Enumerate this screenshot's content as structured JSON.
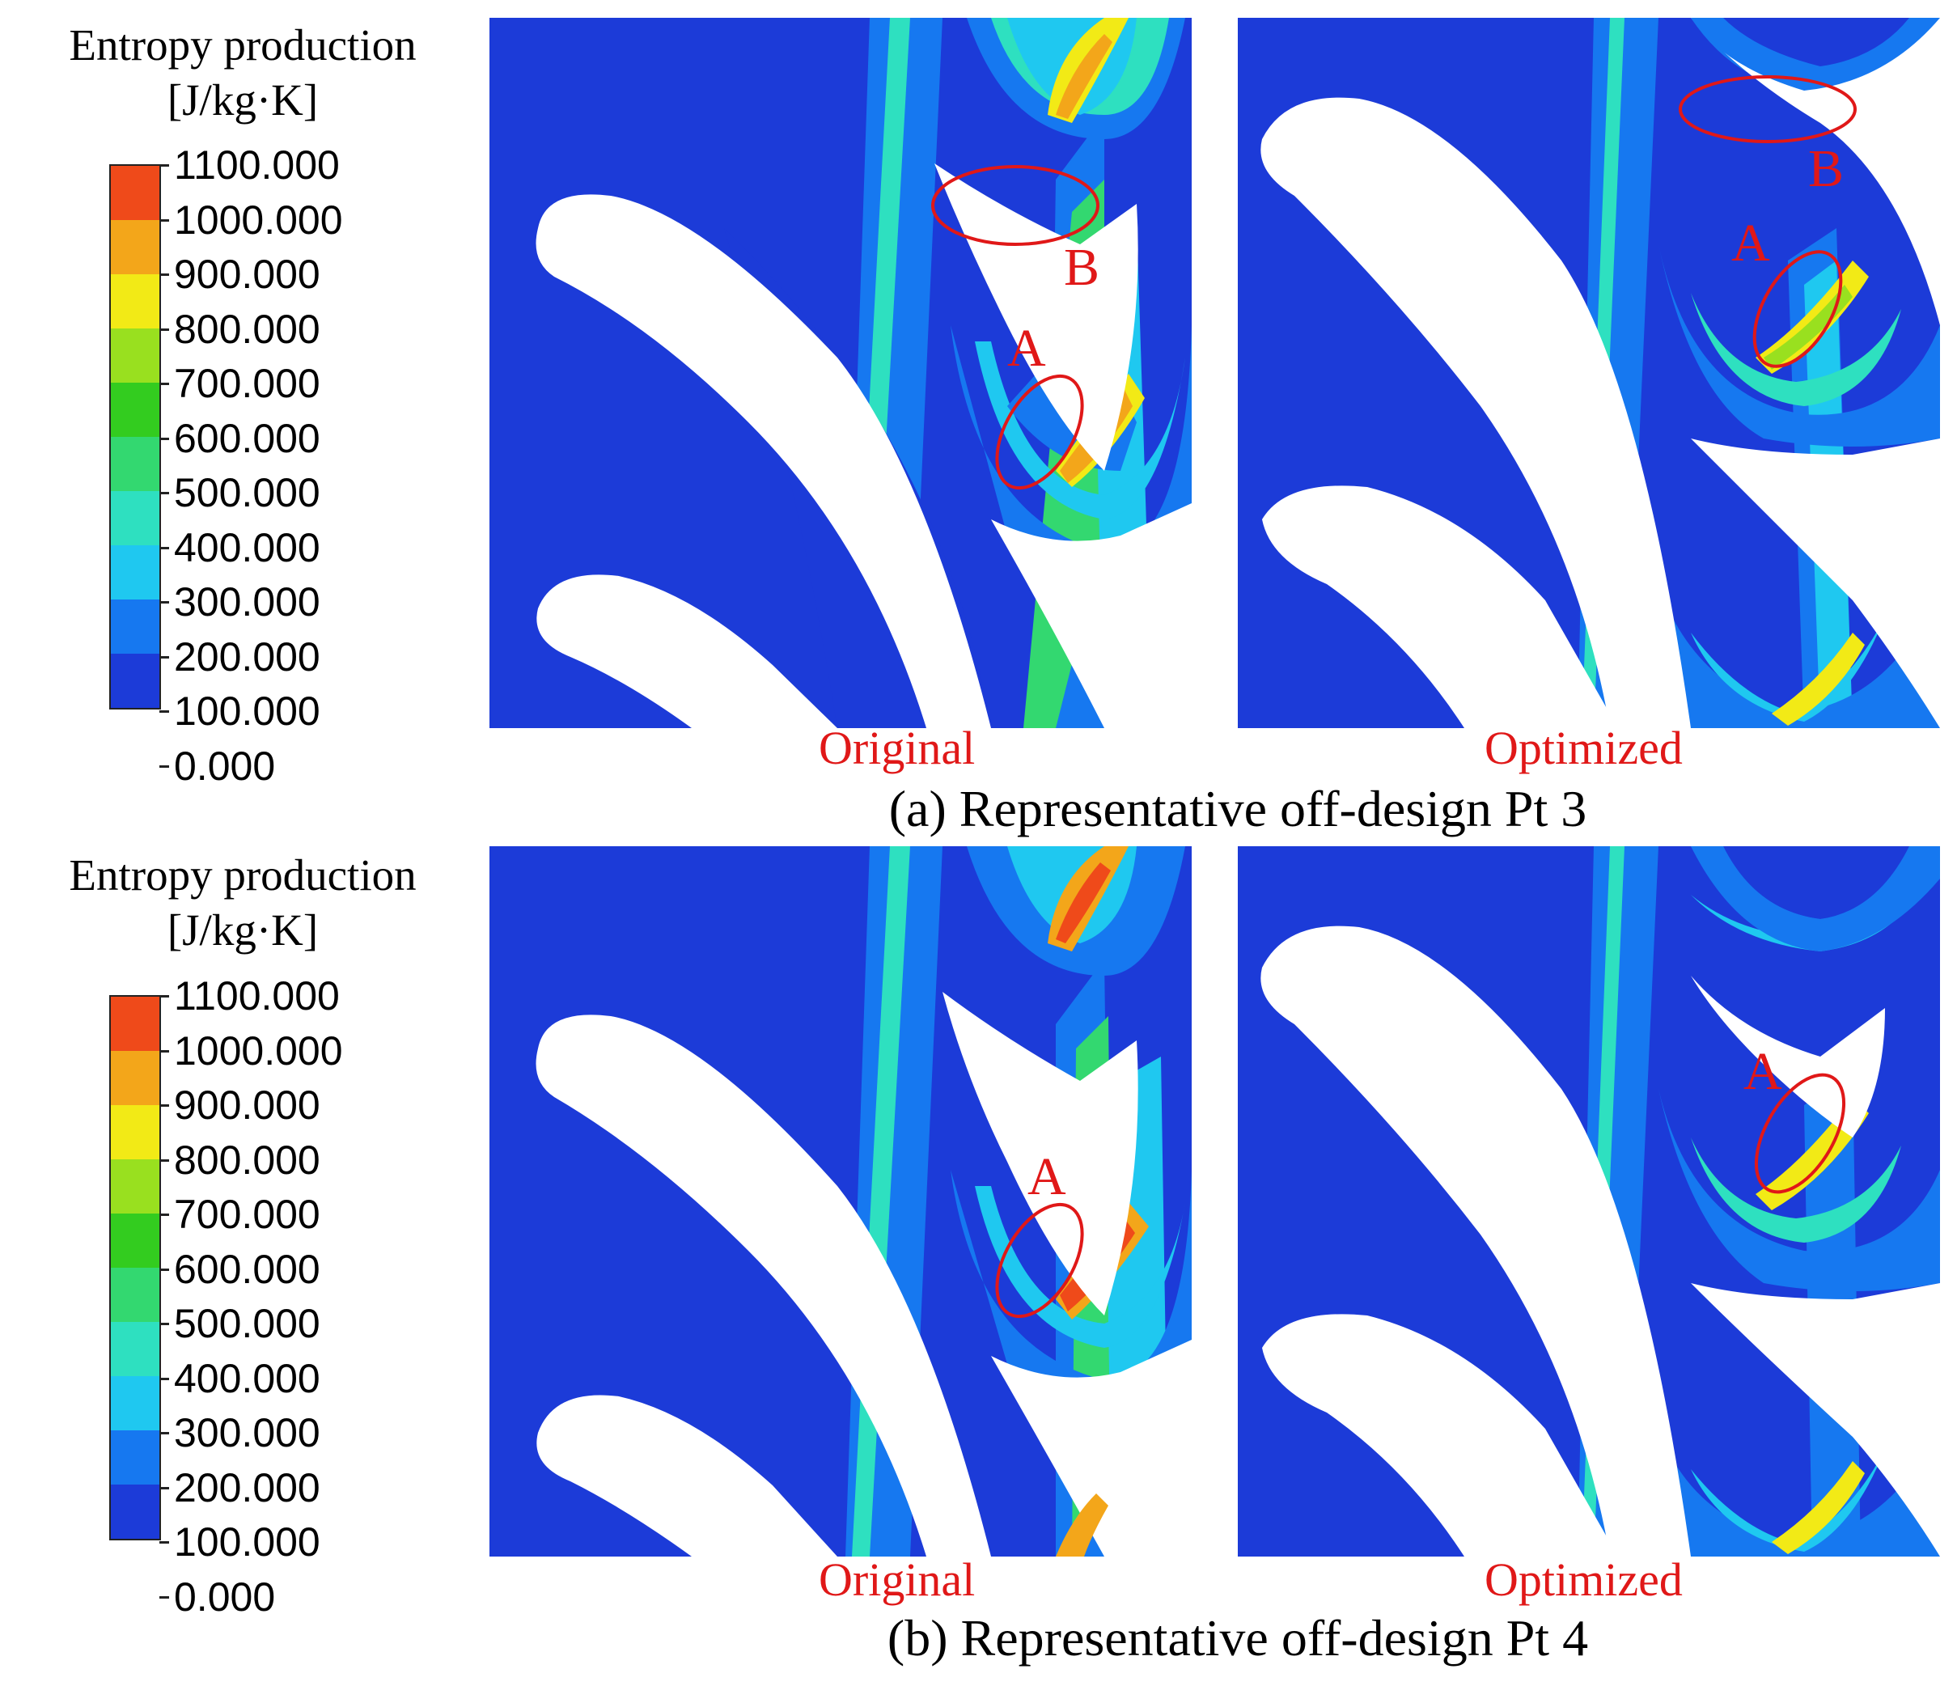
{
  "figure": {
    "colormap_colors": [
      "#1c3bd8",
      "#1678f0",
      "#1fc8f0",
      "#2ee0c0",
      "#33d870",
      "#33cc1f",
      "#99e01f",
      "#f2ea16",
      "#f3a61a",
      "#ef4a1a"
    ],
    "legend": {
      "title": "Entropy production",
      "unit": "[J/kg·K]",
      "ticks": [
        "1100.000",
        "1000.000",
        "900.000",
        "800.000",
        "700.000",
        "600.000",
        "500.000",
        "400.000",
        "300.000",
        "200.000",
        "100.000",
        "0.000"
      ]
    },
    "rows": [
      {
        "id": "a",
        "caption": "(a) Representative off-design Pt 3",
        "legend_title": "Entropy production",
        "legend_unit": "[J/kg·K]",
        "panels": [
          {
            "label": "Original",
            "annotations": [
              "B",
              "A"
            ]
          },
          {
            "label": "Optimized",
            "annotations": [
              "B",
              "A"
            ]
          }
        ]
      },
      {
        "id": "b",
        "caption": "(b) Representative off-design Pt 4",
        "legend_title": "Entropy production",
        "legend_unit": "[J/kg·K]",
        "panels": [
          {
            "label": "Original",
            "annotations": [
              "A"
            ]
          },
          {
            "label": "Optimized",
            "annotations": [
              "A"
            ]
          }
        ]
      }
    ]
  }
}
